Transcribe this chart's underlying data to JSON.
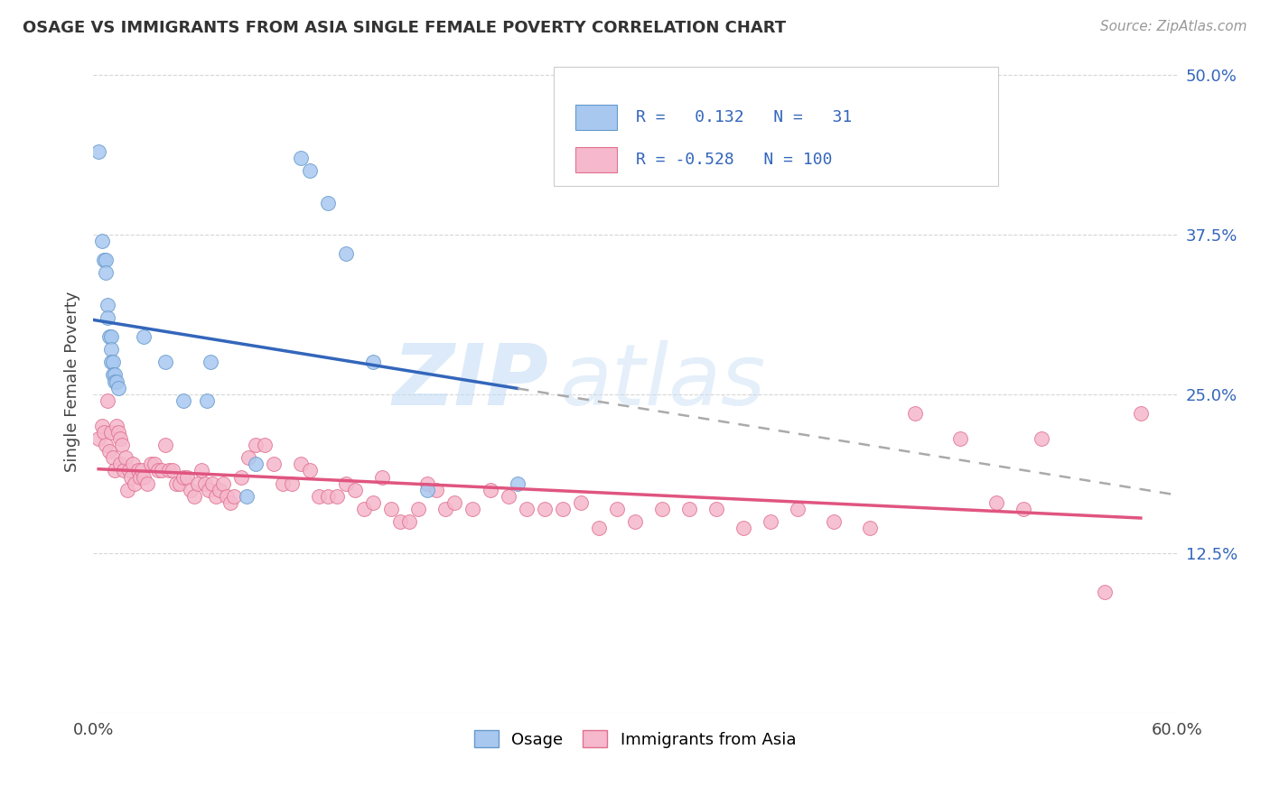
{
  "title": "OSAGE VS IMMIGRANTS FROM ASIA SINGLE FEMALE POVERTY CORRELATION CHART",
  "source": "Source: ZipAtlas.com",
  "ylabel": "Single Female Poverty",
  "xlim": [
    0.0,
    0.6
  ],
  "ylim": [
    0.0,
    0.52
  ],
  "yticks": [
    0.0,
    0.125,
    0.25,
    0.375,
    0.5
  ],
  "ytick_labels": [
    "",
    "12.5%",
    "25.0%",
    "37.5%",
    "50.0%"
  ],
  "xticks": [
    0.0,
    0.1,
    0.2,
    0.3,
    0.4,
    0.5,
    0.6
  ],
  "xtick_labels": [
    "0.0%",
    "",
    "",
    "",
    "",
    "",
    "60.0%"
  ],
  "background_color": "#ffffff",
  "watermark_zip": "ZIP",
  "watermark_atlas": "atlas",
  "osage_color": "#a8c8f0",
  "osage_edge_color": "#6699cc",
  "asia_color": "#f5b8cc",
  "asia_edge_color": "#e07090",
  "osage_line_color": "#3366bb",
  "asia_line_color": "#e05580",
  "dash_color": "#aaaaaa",
  "osage_R": 0.132,
  "osage_N": 31,
  "asia_R": -0.528,
  "asia_N": 100,
  "osage_points": [
    [
      0.003,
      0.44
    ],
    [
      0.005,
      0.37
    ],
    [
      0.006,
      0.355
    ],
    [
      0.007,
      0.355
    ],
    [
      0.007,
      0.345
    ],
    [
      0.008,
      0.32
    ],
    [
      0.008,
      0.31
    ],
    [
      0.009,
      0.295
    ],
    [
      0.01,
      0.295
    ],
    [
      0.01,
      0.285
    ],
    [
      0.01,
      0.275
    ],
    [
      0.011,
      0.275
    ],
    [
      0.011,
      0.265
    ],
    [
      0.012,
      0.265
    ],
    [
      0.012,
      0.26
    ],
    [
      0.013,
      0.26
    ],
    [
      0.014,
      0.255
    ],
    [
      0.028,
      0.295
    ],
    [
      0.04,
      0.275
    ],
    [
      0.05,
      0.245
    ],
    [
      0.063,
      0.245
    ],
    [
      0.065,
      0.275
    ],
    [
      0.085,
      0.17
    ],
    [
      0.09,
      0.195
    ],
    [
      0.115,
      0.435
    ],
    [
      0.12,
      0.425
    ],
    [
      0.13,
      0.4
    ],
    [
      0.14,
      0.36
    ],
    [
      0.155,
      0.275
    ],
    [
      0.185,
      0.175
    ],
    [
      0.235,
      0.18
    ]
  ],
  "asia_points": [
    [
      0.003,
      0.215
    ],
    [
      0.005,
      0.225
    ],
    [
      0.006,
      0.22
    ],
    [
      0.007,
      0.21
    ],
    [
      0.008,
      0.245
    ],
    [
      0.009,
      0.205
    ],
    [
      0.01,
      0.22
    ],
    [
      0.011,
      0.2
    ],
    [
      0.012,
      0.19
    ],
    [
      0.013,
      0.225
    ],
    [
      0.014,
      0.22
    ],
    [
      0.015,
      0.215
    ],
    [
      0.015,
      0.195
    ],
    [
      0.016,
      0.21
    ],
    [
      0.017,
      0.19
    ],
    [
      0.018,
      0.2
    ],
    [
      0.019,
      0.175
    ],
    [
      0.02,
      0.19
    ],
    [
      0.021,
      0.185
    ],
    [
      0.022,
      0.195
    ],
    [
      0.023,
      0.18
    ],
    [
      0.025,
      0.19
    ],
    [
      0.026,
      0.185
    ],
    [
      0.027,
      0.19
    ],
    [
      0.028,
      0.185
    ],
    [
      0.03,
      0.18
    ],
    [
      0.032,
      0.195
    ],
    [
      0.034,
      0.195
    ],
    [
      0.036,
      0.19
    ],
    [
      0.038,
      0.19
    ],
    [
      0.04,
      0.21
    ],
    [
      0.042,
      0.19
    ],
    [
      0.044,
      0.19
    ],
    [
      0.046,
      0.18
    ],
    [
      0.048,
      0.18
    ],
    [
      0.05,
      0.185
    ],
    [
      0.052,
      0.185
    ],
    [
      0.054,
      0.175
    ],
    [
      0.056,
      0.17
    ],
    [
      0.058,
      0.18
    ],
    [
      0.06,
      0.19
    ],
    [
      0.062,
      0.18
    ],
    [
      0.064,
      0.175
    ],
    [
      0.066,
      0.18
    ],
    [
      0.068,
      0.17
    ],
    [
      0.07,
      0.175
    ],
    [
      0.072,
      0.18
    ],
    [
      0.074,
      0.17
    ],
    [
      0.076,
      0.165
    ],
    [
      0.078,
      0.17
    ],
    [
      0.082,
      0.185
    ],
    [
      0.086,
      0.2
    ],
    [
      0.09,
      0.21
    ],
    [
      0.095,
      0.21
    ],
    [
      0.1,
      0.195
    ],
    [
      0.105,
      0.18
    ],
    [
      0.11,
      0.18
    ],
    [
      0.115,
      0.195
    ],
    [
      0.12,
      0.19
    ],
    [
      0.125,
      0.17
    ],
    [
      0.13,
      0.17
    ],
    [
      0.135,
      0.17
    ],
    [
      0.14,
      0.18
    ],
    [
      0.145,
      0.175
    ],
    [
      0.15,
      0.16
    ],
    [
      0.155,
      0.165
    ],
    [
      0.16,
      0.185
    ],
    [
      0.165,
      0.16
    ],
    [
      0.17,
      0.15
    ],
    [
      0.175,
      0.15
    ],
    [
      0.18,
      0.16
    ],
    [
      0.185,
      0.18
    ],
    [
      0.19,
      0.175
    ],
    [
      0.195,
      0.16
    ],
    [
      0.2,
      0.165
    ],
    [
      0.21,
      0.16
    ],
    [
      0.22,
      0.175
    ],
    [
      0.23,
      0.17
    ],
    [
      0.24,
      0.16
    ],
    [
      0.25,
      0.16
    ],
    [
      0.26,
      0.16
    ],
    [
      0.27,
      0.165
    ],
    [
      0.28,
      0.145
    ],
    [
      0.29,
      0.16
    ],
    [
      0.3,
      0.15
    ],
    [
      0.315,
      0.16
    ],
    [
      0.33,
      0.16
    ],
    [
      0.345,
      0.16
    ],
    [
      0.36,
      0.145
    ],
    [
      0.375,
      0.15
    ],
    [
      0.39,
      0.16
    ],
    [
      0.41,
      0.15
    ],
    [
      0.43,
      0.145
    ],
    [
      0.455,
      0.235
    ],
    [
      0.48,
      0.215
    ],
    [
      0.5,
      0.165
    ],
    [
      0.515,
      0.16
    ],
    [
      0.525,
      0.215
    ],
    [
      0.56,
      0.095
    ],
    [
      0.58,
      0.235
    ]
  ]
}
